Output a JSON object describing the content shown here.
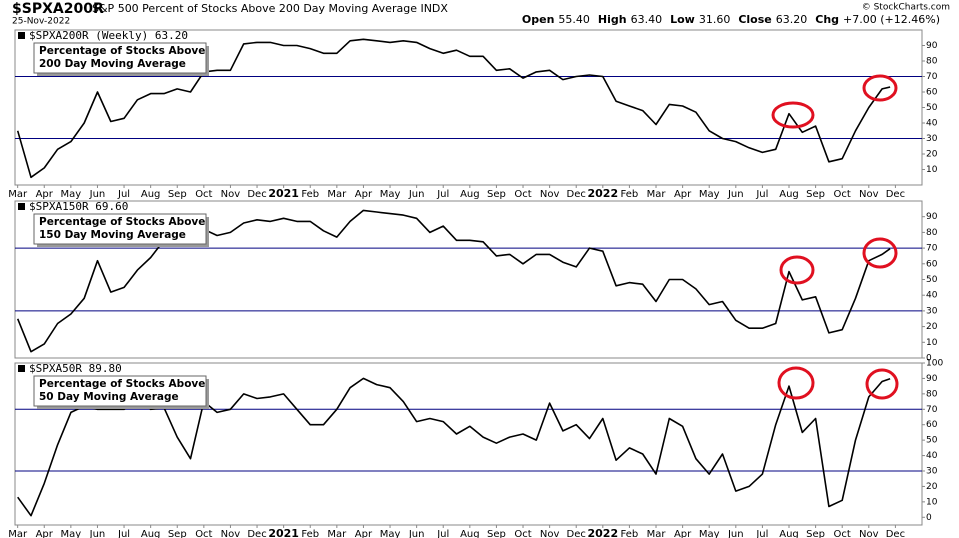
{
  "header": {
    "symbol": "$SPXA200R",
    "description": "S&P 500 Percent of Stocks Above 200 Day Moving Average INDX",
    "date": "25-Nov-2022",
    "stats": [
      {
        "label": "Open",
        "value": "55.40"
      },
      {
        "label": "High",
        "value": "63.40"
      },
      {
        "label": "Low",
        "value": "31.60"
      },
      {
        "label": "Close",
        "value": "63.20"
      },
      {
        "label": "Chg",
        "value": "+7.00 (+12.46%)"
      }
    ],
    "source": "© StockCharts.com"
  },
  "chart_data": [
    {
      "type": "line",
      "label": "$SPXA200R (Weekly) 63.20",
      "box_text": [
        "Percentage of Stocks Above",
        "200 Day Moving Average"
      ],
      "x": [
        0,
        0.5,
        1,
        1.5,
        2,
        2.5,
        3,
        3.5,
        4,
        4.5,
        5,
        5.5,
        6,
        6.5,
        7,
        7.5,
        8,
        8.5,
        9,
        9.5,
        10,
        10.5,
        11,
        11.5,
        12,
        12.5,
        13,
        13.5,
        14,
        14.5,
        15,
        15.5,
        16,
        16.5,
        17,
        17.5,
        18,
        18.5,
        19,
        19.5,
        20,
        20.5,
        21,
        21.5,
        22,
        22.5,
        23,
        23.5,
        24,
        24.5,
        25,
        25.5,
        26,
        26.5,
        27,
        27.5,
        28,
        28.5,
        29,
        29.5,
        30,
        30.5,
        31,
        31.5,
        32,
        32.5,
        32.8
      ],
      "series": [
        {
          "color": "#000000",
          "values": [
            35,
            5,
            11,
            23,
            28,
            40,
            60,
            41,
            43,
            55,
            59,
            59,
            62,
            60,
            73,
            74,
            74,
            91,
            92,
            92,
            90,
            90,
            88,
            85,
            85,
            93,
            94,
            93,
            92,
            93,
            92,
            88,
            85,
            87,
            83,
            83,
            74,
            75,
            69,
            73,
            74,
            68,
            70,
            71,
            70,
            54,
            51,
            48,
            39,
            52,
            51,
            47,
            35,
            30,
            28,
            24,
            21,
            23,
            46,
            34,
            38,
            15,
            17,
            35,
            50,
            62,
            63.2
          ]
        }
      ],
      "xlim": [
        -0.1,
        34
      ],
      "ylim": [
        0,
        100
      ],
      "yticks": [
        10,
        20,
        30,
        40,
        50,
        60,
        70,
        80,
        90
      ],
      "hlines": [
        30,
        70
      ],
      "hline_color": "#000080",
      "xticks": [
        {
          "value": 0,
          "label": "Mar"
        },
        {
          "value": 1,
          "label": "Apr"
        },
        {
          "value": 2,
          "label": "May"
        },
        {
          "value": 3,
          "label": "Jun"
        },
        {
          "value": 4,
          "label": "Jul"
        },
        {
          "value": 5,
          "label": "Aug"
        },
        {
          "value": 6,
          "label": "Sep"
        },
        {
          "value": 7,
          "label": "Oct"
        },
        {
          "value": 8,
          "label": "Nov"
        },
        {
          "value": 9,
          "label": "Dec"
        },
        {
          "value": 10,
          "label": "2021"
        },
        {
          "value": 11,
          "label": "Feb"
        },
        {
          "value": 12,
          "label": "Mar"
        },
        {
          "value": 13,
          "label": "Apr"
        },
        {
          "value": 14,
          "label": "May"
        },
        {
          "value": 15,
          "label": "Jun"
        },
        {
          "value": 16,
          "label": "Jul"
        },
        {
          "value": 17,
          "label": "Aug"
        },
        {
          "value": 18,
          "label": "Sep"
        },
        {
          "value": 19,
          "label": "Oct"
        },
        {
          "value": 20,
          "label": "Nov"
        },
        {
          "value": 21,
          "label": "Dec"
        },
        {
          "value": 22,
          "label": "2022"
        },
        {
          "value": 23,
          "label": "Feb"
        },
        {
          "value": 24,
          "label": "Mar"
        },
        {
          "value": 25,
          "label": "Apr"
        },
        {
          "value": 26,
          "label": "May"
        },
        {
          "value": 27,
          "label": "Jun"
        },
        {
          "value": 28,
          "label": "Jul"
        },
        {
          "value": 29,
          "label": "Aug"
        },
        {
          "value": 30,
          "label": "Sep"
        },
        {
          "value": 31,
          "label": "Oct"
        },
        {
          "value": 32,
          "label": "Nov"
        },
        {
          "value": 33,
          "label": "Dec"
        }
      ]
    },
    {
      "type": "line",
      "label": "$SPXA150R 69.60",
      "box_text": [
        "Percentage of Stocks Above",
        "150 Day Moving Average"
      ],
      "x": [
        0,
        0.5,
        1,
        1.5,
        2,
        2.5,
        3,
        3.5,
        4,
        4.5,
        5,
        5.5,
        6,
        6.5,
        7,
        7.5,
        8,
        8.5,
        9,
        9.5,
        10,
        10.5,
        11,
        11.5,
        12,
        12.5,
        13,
        13.5,
        14,
        14.5,
        15,
        15.5,
        16,
        16.5,
        17,
        17.5,
        18,
        18.5,
        19,
        19.5,
        20,
        20.5,
        21,
        21.5,
        22,
        22.5,
        23,
        23.5,
        24,
        24.5,
        25,
        25.5,
        26,
        26.5,
        27,
        27.5,
        28,
        28.5,
        29,
        29.5,
        30,
        30.5,
        31,
        31.5,
        32,
        32.5,
        32.8
      ],
      "series": [
        {
          "color": "#000000",
          "values": [
            25,
            4,
            9,
            22,
            28,
            38,
            62,
            42,
            45,
            56,
            64,
            75,
            78,
            84,
            82,
            78,
            80,
            86,
            88,
            87,
            89,
            87,
            87,
            81,
            77,
            87,
            94,
            93,
            92,
            91,
            89,
            80,
            84,
            75,
            75,
            74,
            65,
            66,
            60,
            66,
            66,
            61,
            58,
            70,
            68,
            46,
            48,
            47,
            36,
            50,
            50,
            44,
            34,
            36,
            24,
            19,
            19,
            22,
            55,
            37,
            39,
            16,
            18,
            38,
            62,
            66,
            69.6
          ]
        }
      ],
      "xlim": [
        -0.1,
        34
      ],
      "ylim": [
        0,
        100
      ],
      "yticks": [
        0,
        10,
        20,
        30,
        40,
        50,
        60,
        70,
        80,
        90
      ],
      "hlines": [
        30,
        70
      ],
      "hline_color": "#000080"
    },
    {
      "type": "line",
      "label": "$SPXA50R 89.80",
      "box_text": [
        "Percentage of Stocks Above",
        "50 Day Moving Average"
      ],
      "x": [
        0,
        0.5,
        1,
        1.5,
        2,
        2.5,
        3,
        3.5,
        4,
        4.5,
        5,
        5.5,
        6,
        6.5,
        7,
        7.5,
        8,
        8.5,
        9,
        9.5,
        10,
        10.5,
        11,
        11.5,
        12,
        12.5,
        13,
        13.5,
        14,
        14.5,
        15,
        15.5,
        16,
        16.5,
        17,
        17.5,
        18,
        18.5,
        19,
        19.5,
        20,
        20.5,
        21,
        21.5,
        22,
        22.5,
        23,
        23.5,
        24,
        24.5,
        25,
        25.5,
        26,
        26.5,
        27,
        27.5,
        28,
        28.5,
        29,
        29.5,
        30,
        30.5,
        31,
        31.5,
        32,
        32.5,
        32.8
      ],
      "series": [
        {
          "color": "#000000",
          "values": [
            13,
            1,
            22,
            47,
            68,
            72,
            70,
            70,
            70,
            76,
            70,
            71,
            52,
            38,
            75,
            68,
            70,
            80,
            77,
            78,
            80,
            70,
            60,
            60,
            70,
            84,
            90,
            86,
            84,
            75,
            62,
            64,
            62,
            54,
            59,
            52,
            48,
            52,
            54,
            50,
            74,
            56,
            60,
            51,
            64,
            37,
            45,
            41,
            28,
            64,
            59,
            38,
            28,
            41,
            17,
            20,
            28,
            60,
            85,
            55,
            64,
            7,
            11,
            50,
            78,
            88,
            89.8
          ]
        }
      ],
      "xlim": [
        -0.1,
        34
      ],
      "ylim": [
        -5,
        100
      ],
      "yticks": [
        0,
        10,
        20,
        30,
        40,
        50,
        60,
        70,
        80,
        90,
        100
      ],
      "hlines": [
        30,
        70
      ],
      "hline_color": "#000080",
      "xticks": [
        {
          "value": 0,
          "label": "Mar"
        },
        {
          "value": 1,
          "label": "Apr"
        },
        {
          "value": 2,
          "label": "May"
        },
        {
          "value": 3,
          "label": "Jun"
        },
        {
          "value": 4,
          "label": "Jul"
        },
        {
          "value": 5,
          "label": "Aug"
        },
        {
          "value": 6,
          "label": "Sep"
        },
        {
          "value": 7,
          "label": "Oct"
        },
        {
          "value": 8,
          "label": "Nov"
        },
        {
          "value": 9,
          "label": "Dec"
        },
        {
          "value": 10,
          "label": "2021"
        },
        {
          "value": 11,
          "label": "Feb"
        },
        {
          "value": 12,
          "label": "Mar"
        },
        {
          "value": 13,
          "label": "Apr"
        },
        {
          "value": 14,
          "label": "May"
        },
        {
          "value": 15,
          "label": "Jun"
        },
        {
          "value": 16,
          "label": "Jul"
        },
        {
          "value": 17,
          "label": "Aug"
        },
        {
          "value": 18,
          "label": "Sep"
        },
        {
          "value": 19,
          "label": "Oct"
        },
        {
          "value": 20,
          "label": "Nov"
        },
        {
          "value": 21,
          "label": "Dec"
        },
        {
          "value": 22,
          "label": "2022"
        },
        {
          "value": 23,
          "label": "Feb"
        },
        {
          "value": 24,
          "label": "Mar"
        },
        {
          "value": 25,
          "label": "Apr"
        },
        {
          "value": 26,
          "label": "May"
        },
        {
          "value": 27,
          "label": "Jun"
        },
        {
          "value": 28,
          "label": "Jul"
        },
        {
          "value": 29,
          "label": "Aug"
        },
        {
          "value": 30,
          "label": "Sep"
        },
        {
          "value": 31,
          "label": "Oct"
        },
        {
          "value": 32,
          "label": "Nov"
        },
        {
          "value": 33,
          "label": "Dec"
        }
      ]
    }
  ]
}
